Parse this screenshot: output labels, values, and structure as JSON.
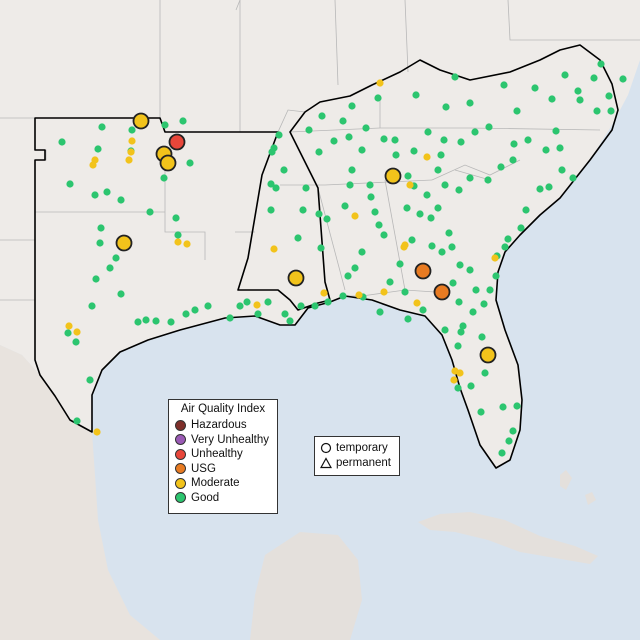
{
  "colors": {
    "water": "#d8e3ee",
    "land": "#eeebe8",
    "land_dark": "#e4e0dc",
    "mexico_land": "#e8e3de",
    "border_gray": "#b8b8b8",
    "region_outline": "#000000",
    "point_outline": "#222222"
  },
  "aqi_legend": {
    "title": "Air Quality Index",
    "categories": [
      {
        "id": "hazardous",
        "label": "Hazardous",
        "color": "#7e2f2a"
      },
      {
        "id": "very-unhealthy",
        "label": "Very Unhealthy",
        "color": "#9a5ab5"
      },
      {
        "id": "unhealthy",
        "label": "Unhealthy",
        "color": "#e8463a"
      },
      {
        "id": "usg",
        "label": "USG",
        "color": "#e87b22"
      },
      {
        "id": "moderate",
        "label": "Moderate",
        "color": "#f2c31b"
      },
      {
        "id": "good",
        "label": "Good",
        "color": "#2cc56f"
      }
    ]
  },
  "site_legend": {
    "items": [
      {
        "shape": "circle",
        "label": "temporary"
      },
      {
        "shape": "triangle",
        "label": "permanent"
      }
    ]
  }
}
